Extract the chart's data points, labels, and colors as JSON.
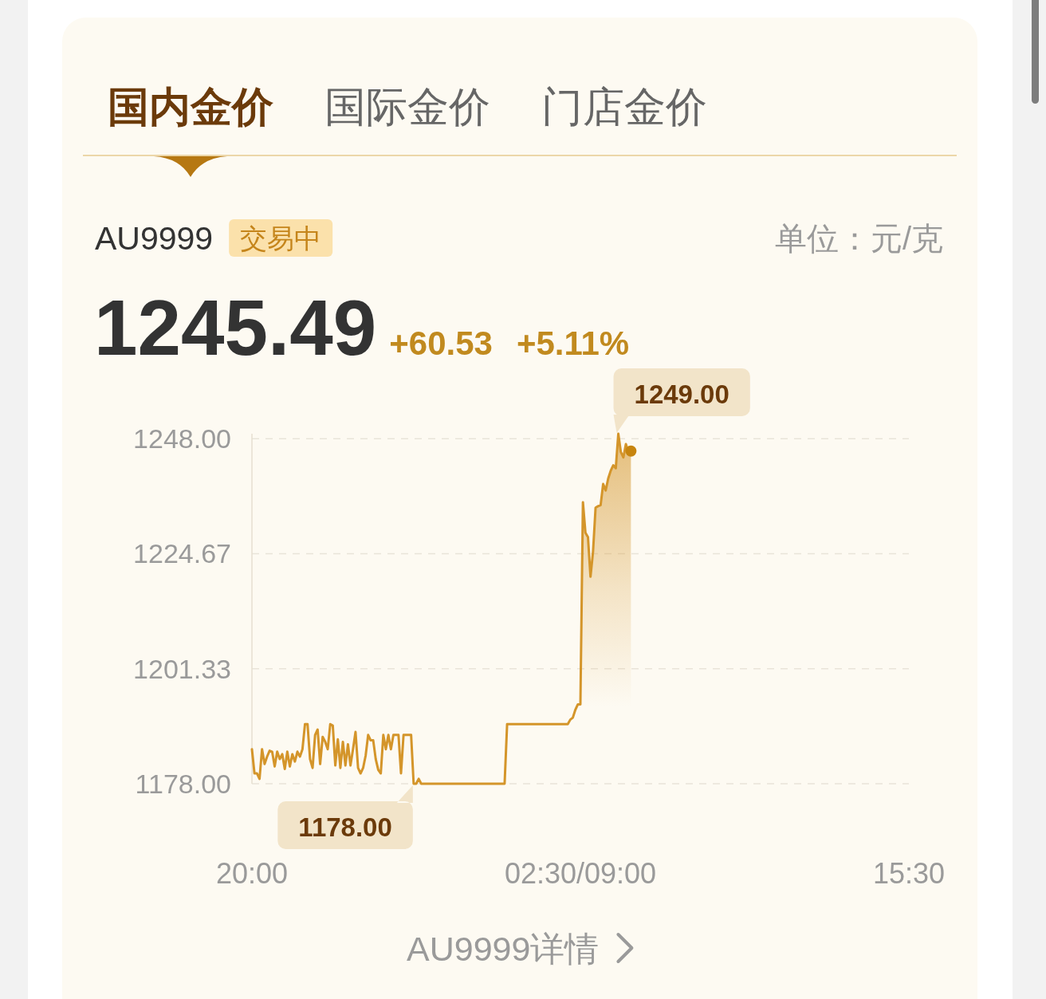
{
  "chart_data": {
    "type": "area",
    "title": "AU9999",
    "annotations": [
      "国内金价",
      "国际金价",
      "门店金价",
      "交易中",
      "单位：元/克",
      "1245.49",
      "+60.53",
      "+5.11%",
      "AU9999详情",
      "1249.00",
      "1178.00"
    ],
    "categories": [
      "20:00",
      null,
      null,
      null,
      null,
      null,
      null,
      null,
      null,
      null,
      null,
      null,
      null,
      null,
      null,
      null,
      null,
      null,
      null,
      null,
      null,
      null,
      null,
      null,
      null,
      null,
      null,
      null,
      null,
      null,
      null,
      null,
      null,
      null,
      null,
      null,
      null,
      null,
      null,
      null,
      null,
      null,
      null,
      null,
      null,
      null,
      null,
      null,
      null,
      null,
      null,
      null,
      null,
      null,
      null,
      null,
      null,
      null,
      null,
      null,
      null,
      null,
      null,
      null,
      null,
      null,
      null,
      null,
      null,
      null,
      null,
      null,
      null,
      null,
      null,
      null,
      null,
      null,
      null,
      null,
      null,
      null,
      null,
      null,
      null,
      null,
      null,
      null,
      null,
      null,
      null,
      null,
      null,
      null,
      null,
      null,
      null,
      null,
      null,
      null,
      null,
      null,
      null,
      null,
      null,
      null,
      null,
      null,
      null,
      null,
      null,
      null,
      null,
      null,
      null,
      null,
      null,
      null,
      null,
      null,
      null,
      null,
      null,
      null,
      null,
      null,
      null,
      null,
      null,
      null,
      "02:30/09:00",
      null,
      null,
      null,
      null,
      null,
      null,
      null,
      null,
      null,
      null,
      null,
      null,
      null,
      null,
      null,
      null,
      null,
      null,
      null,
      null,
      null,
      null,
      null,
      null,
      null,
      null,
      null,
      null,
      null,
      null,
      null,
      null,
      null,
      null,
      null,
      null,
      null,
      null,
      null,
      null,
      null,
      null,
      null,
      null,
      null,
      null,
      null,
      null,
      null,
      null,
      null,
      null,
      null,
      null,
      null,
      null,
      null,
      null,
      null,
      null,
      null,
      null,
      null,
      null,
      null,
      null,
      null,
      null,
      null,
      null,
      null,
      null,
      null,
      null,
      null,
      null,
      null,
      null,
      null,
      null,
      null,
      null,
      null,
      null,
      null,
      null,
      null,
      null,
      null,
      null,
      null,
      null,
      null,
      null,
      null,
      null,
      null,
      null,
      null,
      null,
      null,
      null,
      null,
      null,
      null,
      null,
      null,
      null,
      null,
      null,
      null,
      null,
      null,
      null,
      null,
      null,
      null,
      null,
      null,
      null,
      null,
      null,
      null,
      null,
      null,
      null,
      null,
      null,
      null,
      "15:30"
    ],
    "ylim": [
      1178,
      1249
    ],
    "yticks": [
      {
        "value": 1178,
        "label": "1178.00"
      },
      {
        "value": 1201.33,
        "label": "1201.33"
      },
      {
        "value": 1224.67,
        "label": "1224.67"
      },
      {
        "value": 1248,
        "label": "1248.00"
      }
    ],
    "grid": "y",
    "series": [
      {
        "color": "#d4952a",
        "values": [
          1185.0,
          1180.1,
          1180.1,
          1179.0,
          1185.0,
          1182.0,
          1183.5,
          1184.7,
          1184.5,
          1181.5,
          1184.5,
          1183.0,
          1184.0,
          1181.0,
          1184.5,
          1181.5,
          1184.0,
          1182.5,
          1184.5,
          1183.5,
          1185.0,
          1190.1,
          1190.1,
          1183.0,
          1181.2,
          1187.9,
          1189.0,
          1182.0,
          1187.5,
          1186.5,
          1185.0,
          1190.1,
          1189.8,
          1181.7,
          1187.0,
          1181.2,
          1186.5,
          1181.7,
          1186.0,
          1181.7,
          1185.0,
          1188.5,
          1181.2,
          1180.1,
          1181.2,
          1183.7,
          1187.9,
          1186.8,
          1186.8,
          1183.0,
          1180.8,
          1180.1,
          1187.9,
          1185.0,
          1187.9,
          1185.0,
          1187.9,
          1187.9,
          1187.9,
          1180.1,
          1187.9,
          1187.9,
          1187.9,
          1187.9,
          1178.0,
          1178.0,
          1179.0,
          1178.0,
          1178.0,
          1178.0,
          1178.0,
          1178.0,
          1178.0,
          1178.0,
          1178.0,
          1178.0,
          1178.0,
          1178.0,
          1178.0,
          1178.0,
          1178.0,
          1178.0,
          1178.0,
          1178.0,
          1178.0,
          1178.0,
          1178.0,
          1178.0,
          1178.0,
          1178.0,
          1178.0,
          1178.0,
          1178.0,
          1178.0,
          1178.0,
          1178.0,
          1178.0,
          1178.0,
          1178.0,
          1178.0,
          1178.0,
          1190.1,
          1190.1,
          1190.1,
          1190.1,
          1190.1,
          1190.1,
          1190.1,
          1190.1,
          1190.1,
          1190.1,
          1190.1,
          1190.1,
          1190.1,
          1190.1,
          1190.1,
          1190.1,
          1190.1,
          1190.1,
          1190.1,
          1190.1,
          1190.1,
          1190.1,
          1190.1,
          1190.1,
          1190.1,
          1191.0,
          1191.4,
          1193.0,
          1194.1,
          1194.1,
          1235.1,
          1228.9,
          1228.0,
          1220.0,
          1225.1,
          1234.0,
          1234.3,
          1234.5,
          1238.8,
          1237.5,
          1239.9,
          1241.5,
          1242.6,
          1242.0,
          1249.0,
          1245.3,
          1244.2,
          1246.9,
          1245.3,
          1245.49,
          null,
          null,
          null,
          null,
          null,
          null,
          null,
          null,
          null,
          null,
          null,
          null,
          null,
          null,
          null,
          null,
          null,
          null,
          null,
          null,
          null,
          null,
          null,
          null,
          null,
          null,
          null,
          null,
          null,
          null,
          null,
          null,
          null,
          null,
          null,
          null,
          null,
          null,
          null,
          null,
          null,
          null,
          null,
          null,
          null,
          null,
          null,
          null,
          null,
          null,
          null,
          null,
          null,
          null,
          null,
          null,
          null,
          null,
          null,
          null,
          null,
          null,
          null,
          null,
          null,
          null,
          null,
          null,
          null,
          null,
          null,
          null,
          null,
          null,
          null,
          null,
          null,
          null,
          null,
          null,
          null,
          null,
          null,
          null,
          null,
          null,
          null,
          null,
          null,
          null,
          null,
          null,
          null,
          null,
          null,
          null,
          null,
          null,
          null,
          null,
          null,
          null,
          null,
          null,
          null,
          null,
          null,
          null,
          null,
          null
        ]
      },
      {
        "type": "scatter",
        "color": "#c7850f",
        "marker": "circle",
        "values": [
          null,
          null,
          null,
          null,
          null,
          null,
          null,
          null,
          null,
          null,
          null,
          null,
          null,
          null,
          null,
          null,
          null,
          null,
          null,
          null,
          null,
          null,
          null,
          null,
          null,
          null,
          null,
          null,
          null,
          null,
          null,
          null,
          null,
          null,
          null,
          null,
          null,
          null,
          null,
          null,
          null,
          null,
          null,
          null,
          null,
          null,
          null,
          null,
          null,
          null,
          null,
          null,
          null,
          null,
          null,
          null,
          null,
          null,
          null,
          null,
          null,
          null,
          null,
          null,
          null,
          null,
          null,
          null,
          null,
          null,
          null,
          null,
          null,
          null,
          null,
          null,
          null,
          null,
          null,
          null,
          null,
          null,
          null,
          null,
          null,
          null,
          null,
          null,
          null,
          null,
          null,
          null,
          null,
          null,
          null,
          null,
          null,
          null,
          null,
          null,
          null,
          null,
          null,
          null,
          null,
          null,
          null,
          null,
          null,
          null,
          null,
          null,
          null,
          null,
          null,
          null,
          null,
          null,
          null,
          null,
          null,
          null,
          null,
          null,
          null,
          null,
          null,
          null,
          null,
          null,
          null,
          null,
          null,
          null,
          null,
          null,
          null,
          null,
          null,
          null,
          null,
          null,
          null,
          null,
          null,
          null,
          null,
          null,
          null,
          null,
          1245.49,
          null,
          null,
          null,
          null,
          null,
          null,
          null,
          null,
          null,
          null,
          null,
          null,
          null,
          null,
          null,
          null,
          null,
          null,
          null,
          null,
          null,
          null,
          null,
          null,
          null,
          null,
          null,
          null,
          null,
          null,
          null,
          null,
          null,
          null,
          null,
          null,
          null,
          null,
          null,
          null,
          null,
          null,
          null,
          null,
          null,
          null,
          null,
          null,
          null,
          null,
          null,
          null,
          null,
          null,
          null,
          null,
          null,
          null,
          null,
          null,
          null,
          null,
          null,
          null,
          null,
          null,
          null,
          null,
          null,
          null,
          null,
          null,
          null,
          null,
          null,
          null,
          null,
          null,
          null,
          null,
          null,
          null,
          null,
          null,
          null,
          null,
          null,
          null,
          null,
          null,
          null,
          null,
          null,
          null,
          null,
          null,
          null,
          null,
          null,
          null,
          null,
          null,
          null,
          null,
          null,
          null,
          null,
          null,
          null,
          null
        ]
      }
    ]
  }
}
